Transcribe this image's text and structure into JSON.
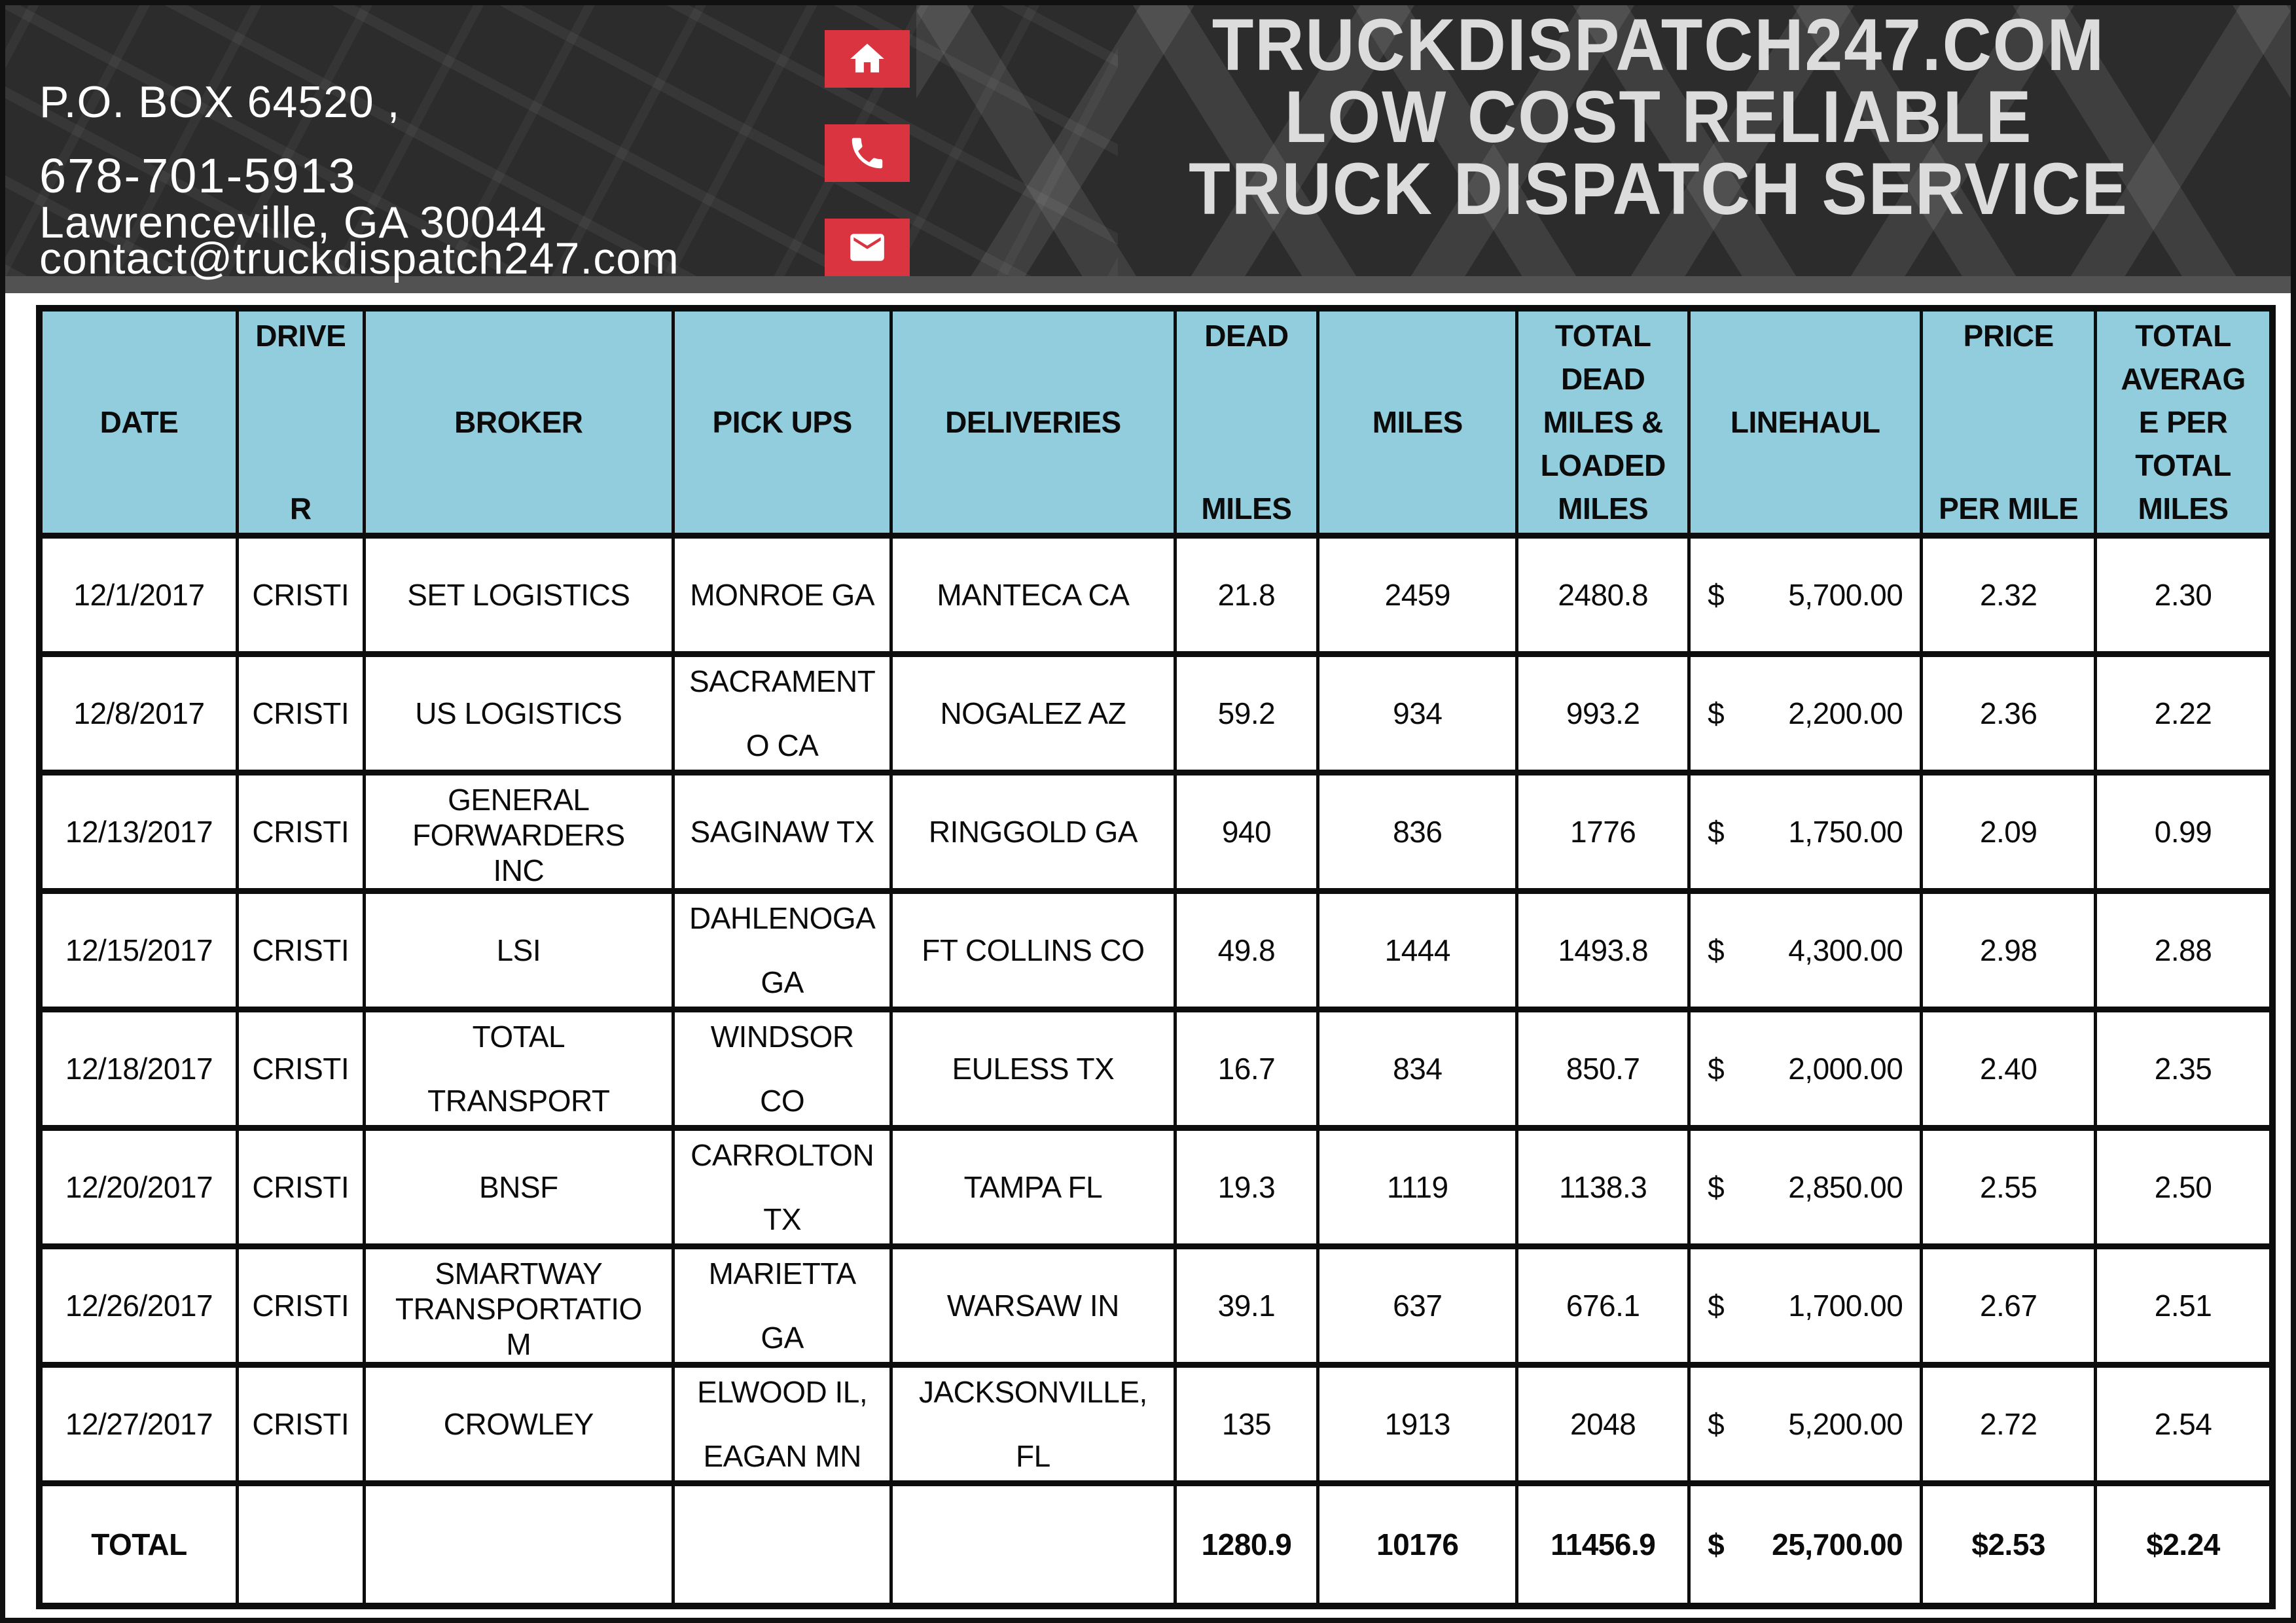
{
  "page": {
    "background": "#ffffff",
    "frame_color": "#111111"
  },
  "header": {
    "background": "#2d2c2c",
    "band_color": "#525252",
    "accent_red": "#d93440",
    "title_color": "#dcdcdc",
    "address_line1": "P.O. BOX 64520 ,",
    "address_line2": "Lawrenceville, GA 30044",
    "phone": "678-701-5913",
    "email": "contact@truckdispatch247.com",
    "icons": [
      "home-icon",
      "phone-icon",
      "email-icon"
    ],
    "title_line1": "TRUCKDISPATCH247.COM",
    "title_line2": "LOW COST RELIABLE",
    "title_line3": "TRUCK DISPATCH SERVICE"
  },
  "table": {
    "header_fill": "#92cdde",
    "headers": [
      "DATE",
      "DRIVE\nR",
      "BROKER",
      "PICK UPS",
      "DELIVERIES",
      "DEAD\nMILES",
      "MILES",
      "TOTAL\nDEAD\nMILES &\nLOADED\nMILES",
      "LINEHAUL",
      "PRICE\nPER MILE",
      "TOTAL\nAVERAG\nE PER\nTOTAL\nMILES"
    ],
    "rows": [
      {
        "date": "12/1/2017",
        "driver": "CRISTI",
        "broker": "SET LOGISTICS",
        "pickups": "MONROE GA",
        "deliveries": "MANTECA CA",
        "dead_miles": "21.8",
        "miles": "2459",
        "total_miles": "2480.8",
        "currency": "$",
        "linehaul": "5,700.00",
        "price_per_mile": "2.32",
        "avg_per_total": "2.30"
      },
      {
        "date": "12/8/2017",
        "driver": "CRISTI",
        "broker": "US LOGISTICS",
        "pickups": "SACRAMENT\nO CA",
        "deliveries": "NOGALEZ AZ",
        "dead_miles": "59.2",
        "miles": "934",
        "total_miles": "993.2",
        "currency": "$",
        "linehaul": "2,200.00",
        "price_per_mile": "2.36",
        "avg_per_total": "2.22"
      },
      {
        "date": "12/13/2017",
        "driver": "CRISTI",
        "broker": "GENERAL\nFORWARDERS\nINC",
        "pickups": "SAGINAW TX",
        "deliveries": "RINGGOLD GA",
        "dead_miles": "940",
        "miles": "836",
        "total_miles": "1776",
        "currency": "$",
        "linehaul": "1,750.00",
        "price_per_mile": "2.09",
        "avg_per_total": "0.99"
      },
      {
        "date": "12/15/2017",
        "driver": "CRISTI",
        "broker": "LSI",
        "pickups": "DAHLENOGA\nGA",
        "deliveries": "FT COLLINS CO",
        "dead_miles": "49.8",
        "miles": "1444",
        "total_miles": "1493.8",
        "currency": "$",
        "linehaul": "4,300.00",
        "price_per_mile": "2.98",
        "avg_per_total": "2.88"
      },
      {
        "date": "12/18/2017",
        "driver": "CRISTI",
        "broker": "TOTAL\nTRANSPORT",
        "pickups": "WINDSOR\nCO",
        "deliveries": "EULESS TX",
        "dead_miles": "16.7",
        "miles": "834",
        "total_miles": "850.7",
        "currency": "$",
        "linehaul": "2,000.00",
        "price_per_mile": "2.40",
        "avg_per_total": "2.35"
      },
      {
        "date": "12/20/2017",
        "driver": "CRISTI",
        "broker": "BNSF",
        "pickups": "CARROLTON\nTX",
        "deliveries": "TAMPA FL",
        "dead_miles": "19.3",
        "miles": "1119",
        "total_miles": "1138.3",
        "currency": "$",
        "linehaul": "2,850.00",
        "price_per_mile": "2.55",
        "avg_per_total": "2.50"
      },
      {
        "date": "12/26/2017",
        "driver": "CRISTI",
        "broker": "SMARTWAY\nTRANSPORTATIO\nM",
        "pickups": "MARIETTA\nGA",
        "deliveries": "WARSAW IN",
        "dead_miles": "39.1",
        "miles": "637",
        "total_miles": "676.1",
        "currency": "$",
        "linehaul": "1,700.00",
        "price_per_mile": "2.67",
        "avg_per_total": "2.51"
      },
      {
        "date": "12/27/2017",
        "driver": "CRISTI",
        "broker": "CROWLEY",
        "pickups": "ELWOOD IL,\nEAGAN MN",
        "deliveries": "JACKSONVILLE,\nFL",
        "dead_miles": "135",
        "miles": "1913",
        "total_miles": "2048",
        "currency": "$",
        "linehaul": "5,200.00",
        "price_per_mile": "2.72",
        "avg_per_total": "2.54"
      }
    ],
    "total_row": {
      "date": "TOTAL",
      "driver": "",
      "broker": "",
      "pickups": "",
      "deliveries": "",
      "dead_miles": "1280.9",
      "miles": "10176",
      "total_miles": "11456.9",
      "currency": "$",
      "linehaul": "25,700.00",
      "price_per_mile": "$2.53",
      "avg_per_total": "$2.24"
    }
  }
}
